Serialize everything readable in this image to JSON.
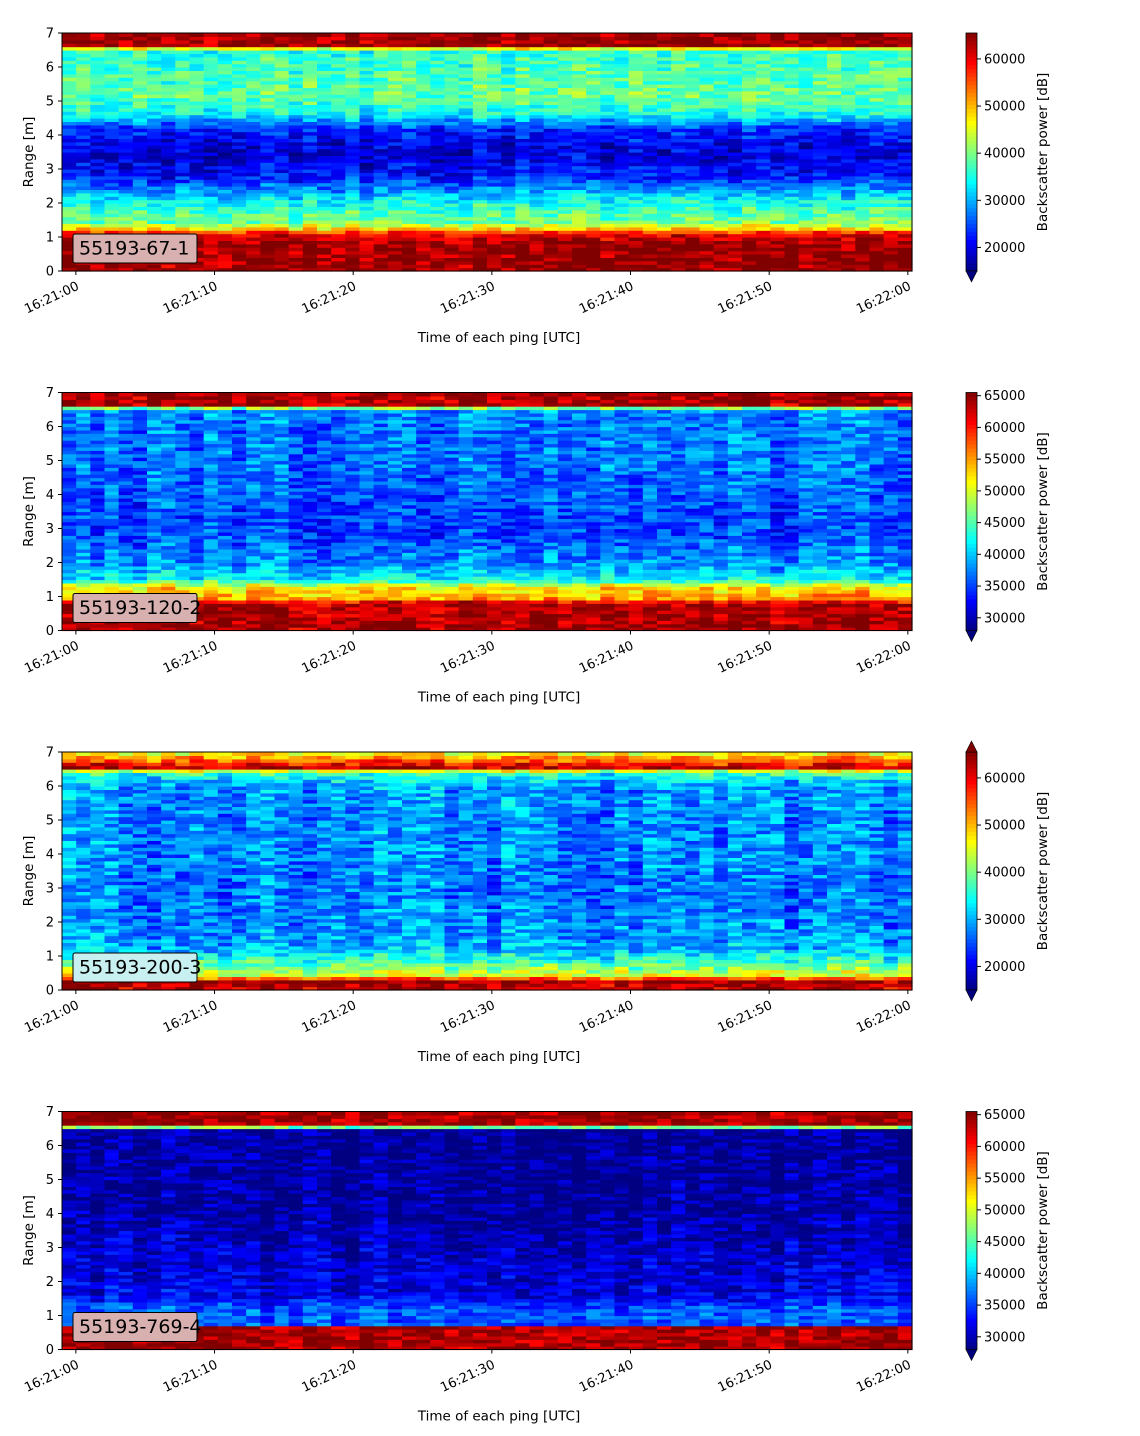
{
  "figure": {
    "layout": "4 stacked heatmap panels"
  },
  "chart_data": [
    {
      "type": "heatmap",
      "label_box": "55193-67-1",
      "xlabel": "Time of each ping [UTC]",
      "ylabel": "Range [m]",
      "colorbar_label": "Backscatter power [dB]",
      "x_ticks": [
        "16:21:00",
        "16:21:10",
        "16:21:20",
        "16:21:30",
        "16:21:40",
        "16:21:50",
        "16:22:00"
      ],
      "y_ticks": [
        "0",
        "1",
        "2",
        "3",
        "4",
        "5",
        "6",
        "7"
      ],
      "ylim": [
        0,
        7
      ],
      "xlim_seconds": [
        -1,
        60.3
      ],
      "colorbar_ticks": [
        "20000",
        "30000",
        "40000",
        "50000",
        "60000"
      ],
      "clim": [
        15000,
        65500
      ],
      "colorbar_extend": "min",
      "label_box_color": "#d8b0b0",
      "profile": [
        {
          "r": 0.0,
          "v": 64000
        },
        {
          "r": 0.25,
          "v": 64000
        },
        {
          "r": 0.3,
          "v": 64500
        },
        {
          "r": 0.8,
          "v": 64000
        },
        {
          "r": 1.1,
          "v": 60000
        },
        {
          "r": 1.25,
          "v": 48000
        },
        {
          "r": 1.45,
          "v": 40000
        },
        {
          "r": 2.0,
          "v": 35000
        },
        {
          "r": 2.3,
          "v": 30000
        },
        {
          "r": 2.8,
          "v": 22000
        },
        {
          "r": 3.5,
          "v": 19000
        },
        {
          "r": 4.2,
          "v": 23000
        },
        {
          "r": 4.6,
          "v": 34000
        },
        {
          "r": 5.2,
          "v": 39000
        },
        {
          "r": 6.0,
          "v": 37000
        },
        {
          "r": 6.5,
          "v": 36000
        },
        {
          "r": 6.65,
          "v": 64000
        },
        {
          "r": 7.0,
          "v": 64000
        }
      ],
      "noise": 5000
    },
    {
      "type": "heatmap",
      "label_box": "55193-120-2",
      "xlabel": "Time of each ping [UTC]",
      "ylabel": "Range [m]",
      "colorbar_label": "Backscatter power [dB]",
      "x_ticks": [
        "16:21:00",
        "16:21:10",
        "16:21:20",
        "16:21:30",
        "16:21:40",
        "16:21:50",
        "16:22:00"
      ],
      "y_ticks": [
        "0",
        "1",
        "2",
        "3",
        "4",
        "5",
        "6",
        "7"
      ],
      "ylim": [
        0,
        7
      ],
      "xlim_seconds": [
        -1,
        60.3
      ],
      "colorbar_ticks": [
        "30000",
        "35000",
        "40000",
        "45000",
        "50000",
        "55000",
        "60000",
        "65000"
      ],
      "clim": [
        28000,
        65500
      ],
      "colorbar_extend": "min",
      "label_box_color": "#d8b0b0",
      "profile": [
        {
          "r": 0.0,
          "v": 64000
        },
        {
          "r": 0.2,
          "v": 64000
        },
        {
          "r": 0.8,
          "v": 64000
        },
        {
          "r": 0.95,
          "v": 55000
        },
        {
          "r": 1.3,
          "v": 52000
        },
        {
          "r": 1.5,
          "v": 42000
        },
        {
          "r": 2.0,
          "v": 38000
        },
        {
          "r": 3.0,
          "v": 35000
        },
        {
          "r": 4.0,
          "v": 36000
        },
        {
          "r": 5.0,
          "v": 37000
        },
        {
          "r": 6.0,
          "v": 37000
        },
        {
          "r": 6.5,
          "v": 38000
        },
        {
          "r": 6.65,
          "v": 64000
        },
        {
          "r": 7.0,
          "v": 64000
        }
      ],
      "noise": 4000
    },
    {
      "type": "heatmap",
      "label_box": "55193-200-3",
      "xlabel": "Time of each ping [UTC]",
      "ylabel": "Range [m]",
      "colorbar_label": "Backscatter power [dB]",
      "x_ticks": [
        "16:21:00",
        "16:21:10",
        "16:21:20",
        "16:21:30",
        "16:21:40",
        "16:21:50",
        "16:22:00"
      ],
      "y_ticks": [
        "0",
        "1",
        "2",
        "3",
        "4",
        "5",
        "6",
        "7"
      ],
      "ylim": [
        0,
        7
      ],
      "xlim_seconds": [
        -1,
        60.3
      ],
      "colorbar_ticks": [
        "20000",
        "30000",
        "40000",
        "50000",
        "60000"
      ],
      "clim": [
        15000,
        65500
      ],
      "colorbar_extend": "both",
      "label_box_color": "#c8f0f0",
      "profile": [
        {
          "r": 0.0,
          "v": 62000
        },
        {
          "r": 0.25,
          "v": 64000
        },
        {
          "r": 0.45,
          "v": 45000
        },
        {
          "r": 0.8,
          "v": 38000
        },
        {
          "r": 1.2,
          "v": 30000
        },
        {
          "r": 2.0,
          "v": 28000
        },
        {
          "r": 3.0,
          "v": 27000
        },
        {
          "r": 4.0,
          "v": 28000
        },
        {
          "r": 5.0,
          "v": 28000
        },
        {
          "r": 6.0,
          "v": 29000
        },
        {
          "r": 6.4,
          "v": 36000
        },
        {
          "r": 6.55,
          "v": 62000
        },
        {
          "r": 6.75,
          "v": 55000
        },
        {
          "r": 7.0,
          "v": 45000
        }
      ],
      "noise": 6000
    },
    {
      "type": "heatmap",
      "label_box": "55193-769-4",
      "xlabel": "Time of each ping [UTC]",
      "ylabel": "Range [m]",
      "colorbar_label": "Backscatter power [dB]",
      "x_ticks": [
        "16:21:00",
        "16:21:10",
        "16:21:20",
        "16:21:30",
        "16:21:40",
        "16:21:50",
        "16:22:00"
      ],
      "y_ticks": [
        "0",
        "1",
        "2",
        "3",
        "4",
        "5",
        "6",
        "7"
      ],
      "ylim": [
        0,
        7
      ],
      "xlim_seconds": [
        -1,
        60.3
      ],
      "colorbar_ticks": [
        "30000",
        "35000",
        "40000",
        "45000",
        "50000",
        "55000",
        "60000",
        "65000"
      ],
      "clim": [
        28000,
        65500
      ],
      "colorbar_extend": "min",
      "label_box_color": "#d8b0b0",
      "profile": [
        {
          "r": 0.0,
          "v": 64000
        },
        {
          "r": 0.25,
          "v": 64000
        },
        {
          "r": 0.65,
          "v": 64000
        },
        {
          "r": 0.75,
          "v": 36000
        },
        {
          "r": 1.2,
          "v": 36000
        },
        {
          "r": 1.6,
          "v": 32000
        },
        {
          "r": 2.5,
          "v": 31000
        },
        {
          "r": 4.0,
          "v": 29500
        },
        {
          "r": 5.5,
          "v": 29000
        },
        {
          "r": 6.5,
          "v": 29000
        },
        {
          "r": 6.6,
          "v": 64000
        },
        {
          "r": 7.0,
          "v": 64000
        }
      ],
      "noise": 3500
    }
  ]
}
